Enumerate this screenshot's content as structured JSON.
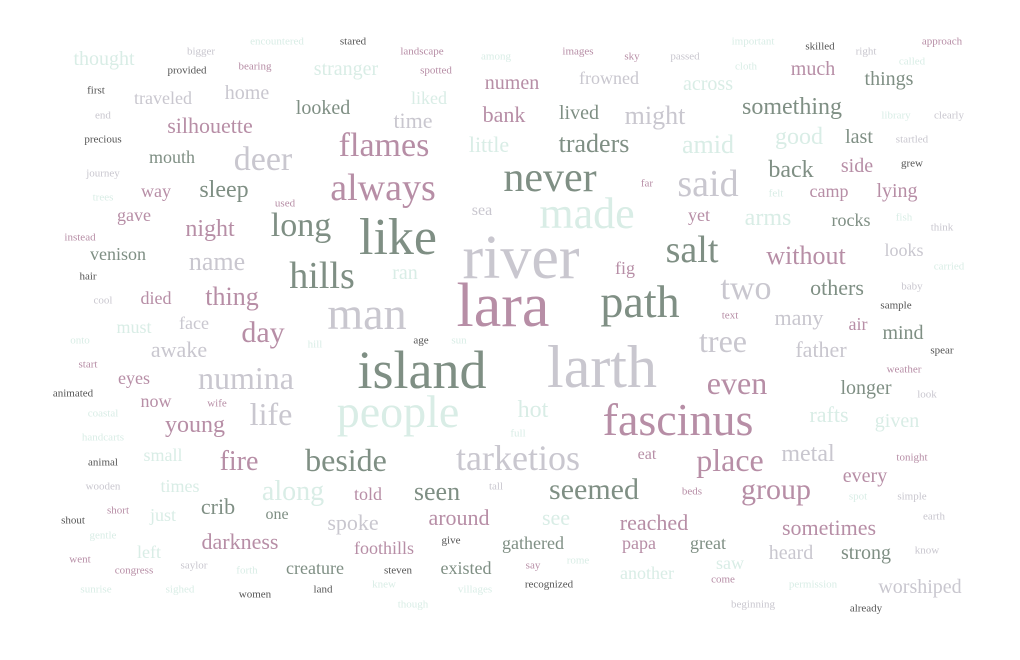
{
  "palette": {
    "mauve": "#b78ea6",
    "green": "#7f8f84",
    "silver": "#c9c7cf",
    "mint": "#d9ede6",
    "dark": "#555555"
  },
  "words": [
    {
      "text": "river",
      "color": "silver",
      "size": 62
    },
    {
      "text": "lara",
      "color": "mauve",
      "size": 62
    },
    {
      "text": "larth",
      "color": "silver",
      "size": 60
    },
    {
      "text": "island",
      "color": "green",
      "size": 54
    },
    {
      "text": "like",
      "color": "green",
      "size": 52
    },
    {
      "text": "man",
      "color": "silver",
      "size": 46
    },
    {
      "text": "path",
      "color": "green",
      "size": 46
    },
    {
      "text": "fascinus",
      "color": "mauve",
      "size": 46
    },
    {
      "text": "people",
      "color": "mint",
      "size": 46
    },
    {
      "text": "made",
      "color": "mint",
      "size": 44
    },
    {
      "text": "never",
      "color": "green",
      "size": 42
    },
    {
      "text": "always",
      "color": "mauve",
      "size": 38
    },
    {
      "text": "said",
      "color": "silver",
      "size": 38
    },
    {
      "text": "salt",
      "color": "green",
      "size": 38
    },
    {
      "text": "hills",
      "color": "green",
      "size": 38
    },
    {
      "text": "tarketios",
      "color": "silver",
      "size": 36
    },
    {
      "text": "flames",
      "color": "mauve",
      "size": 34
    },
    {
      "text": "deer",
      "color": "silver",
      "size": 34
    },
    {
      "text": "long",
      "color": "green",
      "size": 34
    },
    {
      "text": "two",
      "color": "silver",
      "size": 34
    },
    {
      "text": "beside",
      "color": "green",
      "size": 32
    },
    {
      "text": "numina",
      "color": "silver",
      "size": 32
    },
    {
      "text": "place",
      "color": "mauve",
      "size": 32
    },
    {
      "text": "life",
      "color": "silver",
      "size": 32
    },
    {
      "text": "tree",
      "color": "silver",
      "size": 32
    },
    {
      "text": "even",
      "color": "mauve",
      "size": 32
    },
    {
      "text": "seemed",
      "color": "green",
      "size": 30
    },
    {
      "text": "group",
      "color": "mauve",
      "size": 30
    },
    {
      "text": "day",
      "color": "mauve",
      "size": 30
    },
    {
      "text": "fire",
      "color": "mauve",
      "size": 28
    },
    {
      "text": "along",
      "color": "mint",
      "size": 28
    },
    {
      "text": "without",
      "color": "mauve",
      "size": 26
    },
    {
      "text": "something",
      "color": "green",
      "size": 24
    },
    {
      "text": "traders",
      "color": "green",
      "size": 26
    },
    {
      "text": "might",
      "color": "silver",
      "size": 26
    },
    {
      "text": "amid",
      "color": "mint",
      "size": 26
    },
    {
      "text": "back",
      "color": "green",
      "size": 24
    },
    {
      "text": "thing",
      "color": "mauve",
      "size": 26
    },
    {
      "text": "name",
      "color": "silver",
      "size": 26
    },
    {
      "text": "metal",
      "color": "silver",
      "size": 24
    },
    {
      "text": "seen",
      "color": "green",
      "size": 26
    },
    {
      "text": "hot",
      "color": "mint",
      "size": 24
    },
    {
      "text": "good",
      "color": "mint",
      "size": 24
    },
    {
      "text": "arms",
      "color": "mint",
      "size": 24
    },
    {
      "text": "others",
      "color": "green",
      "size": 22
    },
    {
      "text": "sleep",
      "color": "green",
      "size": 24
    },
    {
      "text": "night",
      "color": "mauve",
      "size": 24
    },
    {
      "text": "young",
      "color": "mauve",
      "size": 24
    },
    {
      "text": "awake",
      "color": "silver",
      "size": 22
    },
    {
      "text": "silhouette",
      "color": "mauve",
      "size": 22
    },
    {
      "text": "bank",
      "color": "mauve",
      "size": 22
    },
    {
      "text": "time",
      "color": "silver",
      "size": 22
    },
    {
      "text": "little",
      "color": "mint",
      "size": 22
    },
    {
      "text": "father",
      "color": "silver",
      "size": 22
    },
    {
      "text": "rafts",
      "color": "mint",
      "size": 22
    },
    {
      "text": "many",
      "color": "silver",
      "size": 22
    },
    {
      "text": "mind",
      "color": "green",
      "size": 20
    },
    {
      "text": "darkness",
      "color": "mauve",
      "size": 22
    },
    {
      "text": "sometimes",
      "color": "mauve",
      "size": 22
    },
    {
      "text": "reached",
      "color": "mauve",
      "size": 22
    },
    {
      "text": "spoke",
      "color": "silver",
      "size": 22
    },
    {
      "text": "around",
      "color": "mauve",
      "size": 22
    },
    {
      "text": "see",
      "color": "mint",
      "size": 22
    },
    {
      "text": "crib",
      "color": "green",
      "size": 22
    },
    {
      "text": "strong",
      "color": "green",
      "size": 20
    },
    {
      "text": "heard",
      "color": "silver",
      "size": 20
    },
    {
      "text": "worshiped",
      "color": "silver",
      "size": 20
    },
    {
      "text": "every",
      "color": "mauve",
      "size": 20
    },
    {
      "text": "given",
      "color": "mint",
      "size": 20
    },
    {
      "text": "longer",
      "color": "green",
      "size": 20
    },
    {
      "text": "lying",
      "color": "mauve",
      "size": 20
    },
    {
      "text": "side",
      "color": "mauve",
      "size": 20
    },
    {
      "text": "camp",
      "color": "mauve",
      "size": 18
    },
    {
      "text": "rocks",
      "color": "green",
      "size": 18
    },
    {
      "text": "last",
      "color": "green",
      "size": 20
    },
    {
      "text": "things",
      "color": "green",
      "size": 20
    },
    {
      "text": "much",
      "color": "mauve",
      "size": 20
    },
    {
      "text": "across",
      "color": "mint",
      "size": 20
    },
    {
      "text": "frowned",
      "color": "silver",
      "size": 18
    },
    {
      "text": "numen",
      "color": "mauve",
      "size": 20
    },
    {
      "text": "lived",
      "color": "green",
      "size": 20
    },
    {
      "text": "liked",
      "color": "mint",
      "size": 18
    },
    {
      "text": "looked",
      "color": "green",
      "size": 20
    },
    {
      "text": "home",
      "color": "silver",
      "size": 20
    },
    {
      "text": "stranger",
      "color": "mint",
      "size": 20
    },
    {
      "text": "thought",
      "color": "mint",
      "size": 20
    },
    {
      "text": "traveled",
      "color": "silver",
      "size": 18
    },
    {
      "text": "mouth",
      "color": "green",
      "size": 18
    },
    {
      "text": "way",
      "color": "mauve",
      "size": 18
    },
    {
      "text": "gave",
      "color": "mauve",
      "size": 18
    },
    {
      "text": "venison",
      "color": "green",
      "size": 18
    },
    {
      "text": "died",
      "color": "mauve",
      "size": 18
    },
    {
      "text": "must",
      "color": "mint",
      "size": 18
    },
    {
      "text": "face",
      "color": "silver",
      "size": 18
    },
    {
      "text": "eyes",
      "color": "mauve",
      "size": 18
    },
    {
      "text": "now",
      "color": "mauve",
      "size": 18
    },
    {
      "text": "small",
      "color": "mint",
      "size": 18
    },
    {
      "text": "times",
      "color": "mint",
      "size": 18
    },
    {
      "text": "just",
      "color": "mint",
      "size": 18
    },
    {
      "text": "left",
      "color": "mint",
      "size": 18
    },
    {
      "text": "told",
      "color": "mauve",
      "size": 18
    },
    {
      "text": "one",
      "color": "green",
      "size": 16
    },
    {
      "text": "foothills",
      "color": "mauve",
      "size": 18
    },
    {
      "text": "creature",
      "color": "green",
      "size": 18
    },
    {
      "text": "gathered",
      "color": "green",
      "size": 18
    },
    {
      "text": "existed",
      "color": "green",
      "size": 18
    },
    {
      "text": "papa",
      "color": "mauve",
      "size": 18
    },
    {
      "text": "great",
      "color": "green",
      "size": 18
    },
    {
      "text": "saw",
      "color": "mint",
      "size": 18
    },
    {
      "text": "another",
      "color": "mint",
      "size": 18
    },
    {
      "text": "ran",
      "color": "mint",
      "size": 20
    },
    {
      "text": "sea",
      "color": "silver",
      "size": 16
    },
    {
      "text": "yet",
      "color": "mauve",
      "size": 18
    },
    {
      "text": "fig",
      "color": "mauve",
      "size": 18
    },
    {
      "text": "air",
      "color": "mauve",
      "size": 18
    },
    {
      "text": "eat",
      "color": "mauve",
      "size": 16
    },
    {
      "text": "looks",
      "color": "silver",
      "size": 18
    },
    {
      "text": "stared",
      "color": "dark",
      "size": 11
    },
    {
      "text": "encountered",
      "color": "mint",
      "size": 11
    },
    {
      "text": "bigger",
      "color": "silver",
      "size": 11
    },
    {
      "text": "provided",
      "color": "dark",
      "size": 11
    },
    {
      "text": "bearing",
      "color": "mauve",
      "size": 11
    },
    {
      "text": "landscape",
      "color": "mauve",
      "size": 11
    },
    {
      "text": "spotted",
      "color": "mauve",
      "size": 11
    },
    {
      "text": "among",
      "color": "mint",
      "size": 11
    },
    {
      "text": "images",
      "color": "mauve",
      "size": 11
    },
    {
      "text": "sky",
      "color": "mauve",
      "size": 11
    },
    {
      "text": "passed",
      "color": "silver",
      "size": 11
    },
    {
      "text": "important",
      "color": "mint",
      "size": 11
    },
    {
      "text": "cloth",
      "color": "mint",
      "size": 11
    },
    {
      "text": "skilled",
      "color": "dark",
      "size": 11
    },
    {
      "text": "right",
      "color": "silver",
      "size": 11
    },
    {
      "text": "called",
      "color": "mint",
      "size": 11
    },
    {
      "text": "approach",
      "color": "mauve",
      "size": 11
    },
    {
      "text": "first",
      "color": "dark",
      "size": 11
    },
    {
      "text": "end",
      "color": "silver",
      "size": 11
    },
    {
      "text": "precious",
      "color": "dark",
      "size": 11
    },
    {
      "text": "journey",
      "color": "silver",
      "size": 11
    },
    {
      "text": "trees",
      "color": "mint",
      "size": 11
    },
    {
      "text": "instead",
      "color": "mauve",
      "size": 11
    },
    {
      "text": "hair",
      "color": "dark",
      "size": 11
    },
    {
      "text": "cool",
      "color": "silver",
      "size": 11
    },
    {
      "text": "onto",
      "color": "mint",
      "size": 11
    },
    {
      "text": "start",
      "color": "mauve",
      "size": 11
    },
    {
      "text": "animated",
      "color": "dark",
      "size": 11
    },
    {
      "text": "coastal",
      "color": "mint",
      "size": 11
    },
    {
      "text": "handcarts",
      "color": "mint",
      "size": 11
    },
    {
      "text": "animal",
      "color": "dark",
      "size": 11
    },
    {
      "text": "wooden",
      "color": "silver",
      "size": 11
    },
    {
      "text": "shout",
      "color": "dark",
      "size": 11
    },
    {
      "text": "gentle",
      "color": "mint",
      "size": 11
    },
    {
      "text": "went",
      "color": "mauve",
      "size": 11
    },
    {
      "text": "sunrise",
      "color": "mint",
      "size": 11
    },
    {
      "text": "short",
      "color": "mauve",
      "size": 11
    },
    {
      "text": "congress",
      "color": "mauve",
      "size": 11
    },
    {
      "text": "sighed",
      "color": "mint",
      "size": 11
    },
    {
      "text": "saylor",
      "color": "silver",
      "size": 11
    },
    {
      "text": "women",
      "color": "dark",
      "size": 11
    },
    {
      "text": "forth",
      "color": "mint",
      "size": 11
    },
    {
      "text": "land",
      "color": "dark",
      "size": 11
    },
    {
      "text": "steven",
      "color": "dark",
      "size": 11
    },
    {
      "text": "knew",
      "color": "mint",
      "size": 11
    },
    {
      "text": "though",
      "color": "mint",
      "size": 11
    },
    {
      "text": "villages",
      "color": "mint",
      "size": 11
    },
    {
      "text": "give",
      "color": "dark",
      "size": 11
    },
    {
      "text": "say",
      "color": "mauve",
      "size": 11
    },
    {
      "text": "recognized",
      "color": "dark",
      "size": 11
    },
    {
      "text": "rome",
      "color": "mint",
      "size": 11
    },
    {
      "text": "come",
      "color": "mauve",
      "size": 11
    },
    {
      "text": "beginning",
      "color": "silver",
      "size": 11
    },
    {
      "text": "permission",
      "color": "mint",
      "size": 11
    },
    {
      "text": "already",
      "color": "dark",
      "size": 11
    },
    {
      "text": "know",
      "color": "silver",
      "size": 11
    },
    {
      "text": "earth",
      "color": "silver",
      "size": 11
    },
    {
      "text": "simple",
      "color": "silver",
      "size": 11
    },
    {
      "text": "spot",
      "color": "mint",
      "size": 11
    },
    {
      "text": "beds",
      "color": "mauve",
      "size": 11
    },
    {
      "text": "tonight",
      "color": "mauve",
      "size": 11
    },
    {
      "text": "full",
      "color": "mint",
      "size": 11
    },
    {
      "text": "tall",
      "color": "silver",
      "size": 11
    },
    {
      "text": "weather",
      "color": "mauve",
      "size": 11
    },
    {
      "text": "look",
      "color": "silver",
      "size": 11
    },
    {
      "text": "spear",
      "color": "dark",
      "size": 11
    },
    {
      "text": "text",
      "color": "mauve",
      "size": 11
    },
    {
      "text": "sample",
      "color": "dark",
      "size": 11
    },
    {
      "text": "baby",
      "color": "silver",
      "size": 11
    },
    {
      "text": "carried",
      "color": "mint",
      "size": 11
    },
    {
      "text": "think",
      "color": "silver",
      "size": 11
    },
    {
      "text": "fish",
      "color": "mint",
      "size": 11
    },
    {
      "text": "felt",
      "color": "mint",
      "size": 11
    },
    {
      "text": "far",
      "color": "mauve",
      "size": 11
    },
    {
      "text": "grew",
      "color": "dark",
      "size": 11
    },
    {
      "text": "startled",
      "color": "silver",
      "size": 11
    },
    {
      "text": "library",
      "color": "mint",
      "size": 11
    },
    {
      "text": "clearly",
      "color": "silver",
      "size": 11
    },
    {
      "text": "used",
      "color": "mauve",
      "size": 11
    },
    {
      "text": "age",
      "color": "dark",
      "size": 11
    },
    {
      "text": "sun",
      "color": "mint",
      "size": 11
    },
    {
      "text": "hill",
      "color": "mint",
      "size": 11
    },
    {
      "text": "wife",
      "color": "mauve",
      "size": 11
    }
  ]
}
